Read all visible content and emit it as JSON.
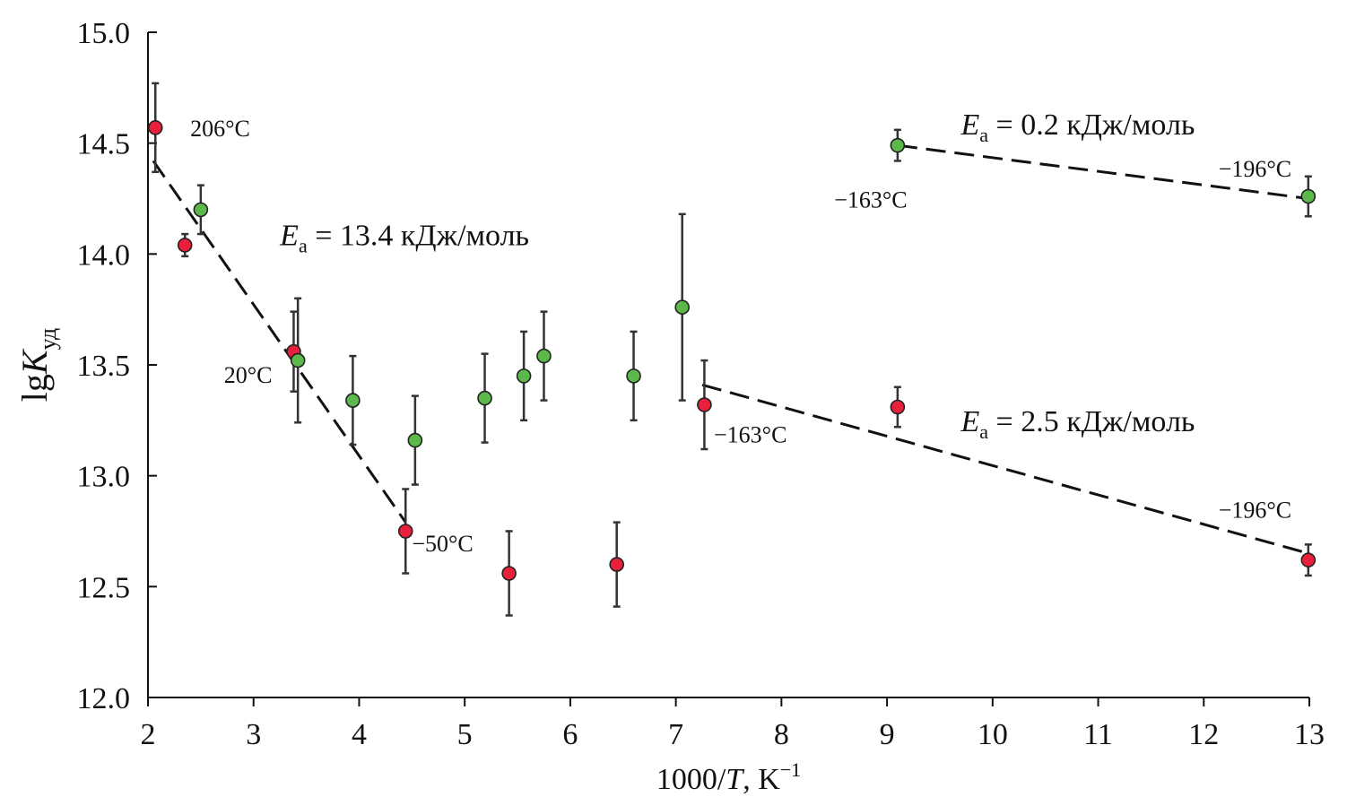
{
  "chart_data": {
    "type": "scatter",
    "title": "",
    "xlabel": {
      "prefix": "1000/",
      "var": "T",
      "unit": ", K",
      "sup": "−1"
    },
    "ylabel": {
      "prefix": "lg",
      "var": "K",
      "sub": "уд"
    },
    "xlim": [
      2,
      13
    ],
    "ylim": [
      12.0,
      15.0
    ],
    "xticks": [
      "2",
      "3",
      "4",
      "5",
      "6",
      "7",
      "8",
      "9",
      "10",
      "11",
      "12",
      "13"
    ],
    "yticks": [
      "12.0",
      "12.5",
      "13.0",
      "13.5",
      "14.0",
      "14.5",
      "15.0"
    ],
    "grid": false,
    "colors": {
      "red": "#e8203c",
      "green": "#5cb84a",
      "axis": "#111111",
      "line": "#111111"
    },
    "series": [
      {
        "name": "red",
        "points": [
          {
            "x": 2.07,
            "y": 14.57,
            "err": 0.2
          },
          {
            "x": 2.35,
            "y": 14.04,
            "err": 0.05
          },
          {
            "x": 3.38,
            "y": 13.56,
            "err": 0.18
          },
          {
            "x": 4.44,
            "y": 12.75,
            "err": 0.19
          },
          {
            "x": 5.42,
            "y": 12.56,
            "err": 0.19
          },
          {
            "x": 6.44,
            "y": 12.6,
            "err": 0.19
          },
          {
            "x": 7.27,
            "y": 13.32,
            "err": 0.2
          },
          {
            "x": 9.1,
            "y": 13.31,
            "err": 0.09
          },
          {
            "x": 12.99,
            "y": 12.62,
            "err": 0.07
          }
        ]
      },
      {
        "name": "green",
        "points": [
          {
            "x": 2.5,
            "y": 14.2,
            "err": 0.11
          },
          {
            "x": 3.42,
            "y": 13.52,
            "err": 0.28
          },
          {
            "x": 3.94,
            "y": 13.34,
            "err": 0.2
          },
          {
            "x": 4.53,
            "y": 13.16,
            "err": 0.2
          },
          {
            "x": 5.19,
            "y": 13.35,
            "err": 0.2
          },
          {
            "x": 5.56,
            "y": 13.45,
            "err": 0.2
          },
          {
            "x": 5.75,
            "y": 13.54,
            "err": 0.2
          },
          {
            "x": 6.6,
            "y": 13.45,
            "err": 0.2
          },
          {
            "x": 7.06,
            "y": 13.76,
            "err": 0.42
          },
          {
            "x": 9.1,
            "y": 14.49,
            "err": 0.07
          },
          {
            "x": 12.99,
            "y": 14.26,
            "err": 0.09
          }
        ]
      }
    ],
    "fit_lines": [
      {
        "name": "fit-high-temp",
        "x": [
          2.05,
          4.44
        ],
        "y": [
          14.42,
          12.79
        ]
      },
      {
        "name": "fit-low-temp-red",
        "x": [
          7.25,
          12.99
        ],
        "y": [
          13.41,
          12.65
        ]
      },
      {
        "name": "fit-low-temp-green",
        "x": [
          9.1,
          12.99
        ],
        "y": [
          14.49,
          14.25
        ]
      }
    ],
    "point_labels": [
      {
        "text": "206°C",
        "x": 2.4,
        "y": 14.53
      },
      {
        "text": "20°C",
        "x": 2.72,
        "y": 13.42
      },
      {
        "text": "−50°C",
        "x": 4.5,
        "y": 12.66
      },
      {
        "text": "−163°C",
        "x": 7.36,
        "y": 13.15
      },
      {
        "text": "−163°C",
        "x": 8.5,
        "y": 14.21
      },
      {
        "text": "−196°C",
        "x": 12.14,
        "y": 14.35
      },
      {
        "text": "−196°C",
        "x": 12.14,
        "y": 12.81
      }
    ],
    "annotations": [
      {
        "prefix": "E",
        "sub": "а",
        "text": " = 13.4 кДж/моль",
        "x": 3.25,
        "y": 14.04
      },
      {
        "prefix": "E",
        "sub": "а",
        "text": " = 0.2 кДж/моль",
        "x": 9.7,
        "y": 14.54
      },
      {
        "prefix": "E",
        "sub": "а",
        "text": " = 2.5 кДж/моль",
        "x": 9.7,
        "y": 13.2
      }
    ]
  }
}
